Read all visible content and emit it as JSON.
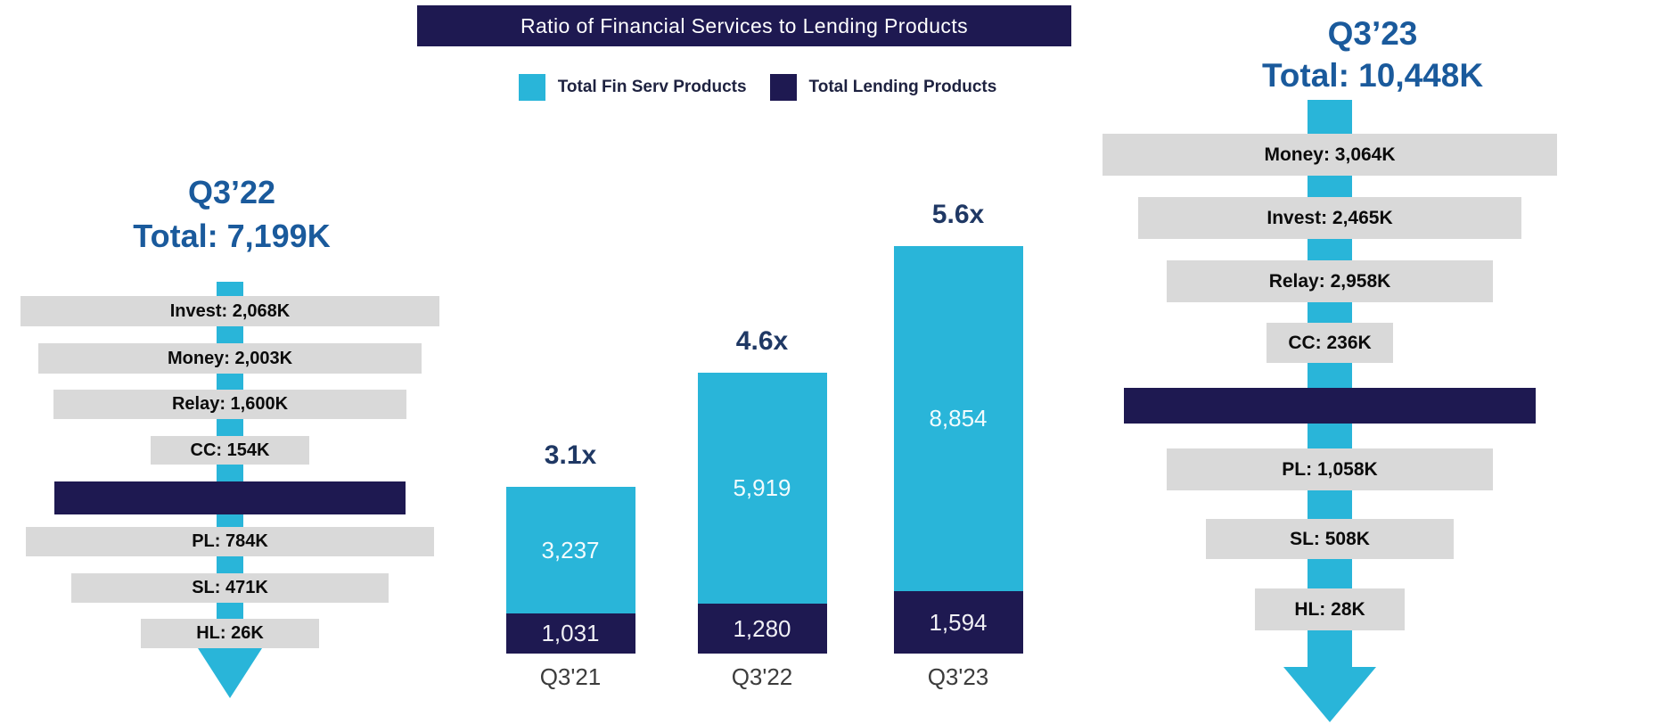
{
  "title": "Ratio of Financial Services to Lending Products",
  "colors": {
    "fin_serv_cyan": "#29B5D9",
    "lending_navy": "#1E1951",
    "funnel_bar_gray": "#D9D9D9",
    "funnel_header_blue": "#1A5A9C",
    "ratio_label_blue": "#1F3864"
  },
  "legend": {
    "items": [
      {
        "label": "Total Fin Serv Products",
        "swatch": "fin-serv-cyan"
      },
      {
        "label": "Total Lending Products",
        "swatch": "lending-navy"
      }
    ]
  },
  "chart_data": {
    "type": "bar",
    "stacked": true,
    "title": "Ratio of Financial Services to Lending Products",
    "categories": [
      "Q3'21",
      "Q3'22",
      "Q3'23"
    ],
    "series": [
      {
        "name": "Total Fin Serv Products",
        "color": "#29B5D9",
        "values": [
          3237,
          5919,
          8854
        ],
        "labels": [
          "3,237",
          "5,919",
          "8,854"
        ]
      },
      {
        "name": "Total Lending Products",
        "color": "#1E1951",
        "values": [
          1031,
          1280,
          1594
        ],
        "labels": [
          "1,031",
          "1,280",
          "1,594"
        ]
      }
    ],
    "totals": [
      4268,
      7199,
      10448
    ],
    "ratio_annotations": [
      "3.1x",
      "4.6x",
      "5.6x"
    ],
    "legend_position": "top",
    "grid": false,
    "y_axis_visible": false
  },
  "left_funnel": {
    "period": "Q3’22",
    "total_label": "Total: 7,199K",
    "segments": [
      {
        "label": "Invest: 2,068K",
        "value_k": 2068,
        "group": "fin_serv"
      },
      {
        "label": "Money: 2,003K",
        "value_k": 2003,
        "group": "fin_serv"
      },
      {
        "label": "Relay: 1,600K",
        "value_k": 1600,
        "group": "fin_serv"
      },
      {
        "label": "CC: 154K",
        "value_k": 154,
        "group": "fin_serv"
      },
      {
        "divider": true,
        "group": "lending_divider"
      },
      {
        "label": "PL: 784K",
        "value_k": 784,
        "group": "lending"
      },
      {
        "label": "SL: 471K",
        "value_k": 471,
        "group": "lending"
      },
      {
        "label": "HL: 26K",
        "value_k": 26,
        "group": "lending"
      }
    ]
  },
  "right_funnel": {
    "period": "Q3’23",
    "total_label": "Total: 10,448K",
    "segments": [
      {
        "label": "Money: 3,064K",
        "value_k": 3064,
        "group": "fin_serv"
      },
      {
        "label": "Invest: 2,465K",
        "value_k": 2465,
        "group": "fin_serv"
      },
      {
        "label": "Relay: 2,958K",
        "value_k": 2958,
        "group": "fin_serv"
      },
      {
        "label": "CC: 236K",
        "value_k": 236,
        "group": "fin_serv"
      },
      {
        "divider": true,
        "group": "lending_divider"
      },
      {
        "label": "PL: 1,058K",
        "value_k": 1058,
        "group": "lending"
      },
      {
        "label": "SL: 508K",
        "value_k": 508,
        "group": "lending"
      },
      {
        "label": "HL: 28K",
        "value_k": 28,
        "group": "lending"
      }
    ]
  }
}
